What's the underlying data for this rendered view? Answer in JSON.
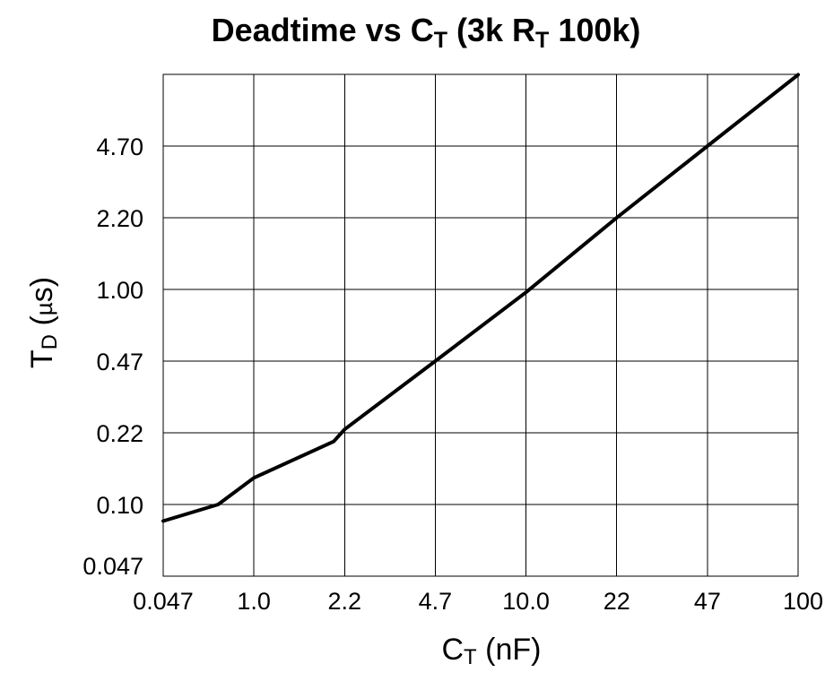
{
  "chart_data": {
    "type": "line",
    "title": {
      "main": "Deadtime vs C",
      "main_sub": "T",
      "mid": " (3k  R",
      "mid_sub": "T",
      "end": "  100k)"
    },
    "xlabel": {
      "main": "C",
      "sub": "T",
      "end": " (nF)"
    },
    "ylabel": {
      "main": "T",
      "sub": "D",
      "end": " (",
      "mu": "µ",
      "tail": "s)"
    },
    "x_scale": "categorical-log",
    "y_scale": "categorical-log",
    "x_ticks": [
      "0.047",
      "1.0",
      "2.2",
      "4.7",
      "10.0",
      "22",
      "47",
      "100"
    ],
    "y_ticks": [
      "0.047",
      "0.10",
      "0.22",
      "0.47",
      "1.00",
      "2.20",
      "4.70"
    ],
    "grid": true,
    "series": [
      {
        "points": [
          {
            "x": 0.047,
            "y": 0.084
          },
          {
            "x": 0.3,
            "y": 0.1
          },
          {
            "x": 1.0,
            "y": 0.134
          },
          {
            "x": 2.0,
            "y": 0.2
          },
          {
            "x": 2.2,
            "y": 0.228
          },
          {
            "x": 4.7,
            "y": 0.47
          },
          {
            "x": 10.0,
            "y": 0.97
          },
          {
            "x": 22,
            "y": 2.2
          },
          {
            "x": 47,
            "y": 4.7
          },
          {
            "x": 100,
            "y": 10.0
          }
        ]
      }
    ]
  }
}
